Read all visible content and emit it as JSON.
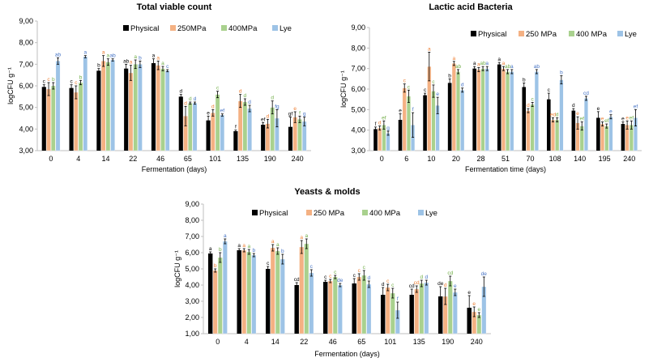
{
  "colors": {
    "Physical": "#000000",
    "250MPa": "#f4b183",
    "400MPa": "#a9d18e",
    "Lye": "#9dc3e6"
  },
  "chart_data": [
    {
      "type": "bar",
      "title": "Total viable count",
      "xlabel": "Fermentation (days)",
      "ylabel": "logCFU g⁻¹",
      "ylim": [
        3,
        9
      ],
      "yticks": [
        "3,00",
        "4,00",
        "5,00",
        "6,00",
        "7,00",
        "8,00",
        "9,00"
      ],
      "legend_position": "top-right",
      "categories": [
        "0",
        "4",
        "14",
        "22",
        "46",
        "65",
        "101",
        "135",
        "190",
        "240"
      ],
      "series": [
        {
          "name": "Physical",
          "key": "Physical",
          "values": [
            5.95,
            5.9,
            6.7,
            6.8,
            7.05,
            5.5,
            4.4,
            3.9,
            4.2,
            4.1
          ],
          "errors": [
            0.1,
            0.15,
            0.1,
            0.2,
            0.2,
            0.1,
            0.2,
            0.05,
            0.1,
            0.45
          ],
          "letters": [
            "c",
            "c",
            "b",
            "ab",
            "a",
            "d",
            "e",
            "f",
            "ef",
            "gf"
          ]
        },
        {
          "name": "250MPa",
          "key": "250MPa",
          "values": [
            5.85,
            5.7,
            7.15,
            6.6,
            6.95,
            4.6,
            4.75,
            5.3,
            4.25,
            4.55
          ],
          "errors": [
            0.3,
            0.3,
            0.25,
            0.35,
            0.2,
            0.45,
            0.15,
            0.3,
            0.2,
            0.25
          ],
          "letters": [
            "c",
            "c",
            "a",
            "a",
            "a",
            "d",
            "d",
            "d",
            "d",
            "e"
          ]
        },
        {
          "name": "400MPa",
          "key": "400MPa",
          "values": [
            6.0,
            6.15,
            7.1,
            7.0,
            6.8,
            5.2,
            5.6,
            5.25,
            5.0,
            4.45
          ],
          "errors": [
            0.15,
            0.1,
            0.15,
            0.2,
            0.1,
            0.05,
            0.15,
            0.15,
            0.3,
            0.15
          ],
          "letters": [
            "b",
            "b",
            "a",
            "a",
            "a",
            "d",
            "c",
            "d",
            "d",
            "f"
          ]
        },
        {
          "name": "Lye",
          "key": "Lye",
          "values": [
            7.15,
            7.35,
            7.2,
            7.0,
            6.7,
            5.2,
            4.65,
            4.95,
            4.5,
            4.35
          ],
          "errors": [
            0.15,
            0.05,
            0.05,
            0.15,
            0.05,
            0.05,
            0.05,
            0.15,
            0.4,
            0.2
          ],
          "letters": [
            "ab",
            "a",
            "ab",
            "b",
            "c",
            "d",
            "ef",
            "d",
            "fg",
            "g"
          ]
        }
      ]
    },
    {
      "type": "bar",
      "title": "Lactic acid Bacteria",
      "xlabel": "Fermentation time (days)",
      "ylabel": "logCFU g⁻¹",
      "ylim": [
        3,
        9
      ],
      "yticks": [
        "3,00",
        "4,00",
        "5,00",
        "6,00",
        "7,00",
        "8,00",
        "9,00"
      ],
      "legend_position": "top-right",
      "categories": [
        "0",
        "6",
        "10",
        "20",
        "28",
        "51",
        "70",
        "108",
        "140",
        "195",
        "240"
      ],
      "series": [
        {
          "name": "Physical",
          "key": "Physical",
          "values": [
            4.05,
            4.5,
            5.7,
            6.3,
            7.0,
            7.2,
            6.1,
            5.5,
            4.95,
            4.6,
            4.3
          ],
          "errors": [
            0.1,
            0.3,
            0.1,
            0.2,
            0.1,
            0.1,
            0.2,
            0.3,
            0.1,
            0.3,
            0.1
          ],
          "letters": [
            "f",
            "e",
            "c",
            "b",
            "a",
            "a",
            "b",
            "c",
            "d",
            "e",
            "e"
          ]
        },
        {
          "name": "250 MPa",
          "key": "250MPa",
          "values": [
            4.1,
            6.05,
            7.1,
            7.25,
            6.95,
            7.0,
            4.95,
            4.5,
            4.35,
            4.3,
            4.25
          ],
          "errors": [
            0.1,
            0.2,
            0.7,
            0.1,
            0.1,
            0.1,
            0.1,
            0.1,
            0.3,
            0.1,
            0.2
          ],
          "letters": [
            "d",
            "c",
            "a",
            "a",
            "a",
            "a",
            "d",
            "ed",
            "e",
            "e",
            "e"
          ]
        },
        {
          "name": "400 MPa",
          "key": "400MPa",
          "values": [
            4.25,
            5.65,
            5.9,
            6.85,
            7.0,
            6.85,
            5.25,
            4.5,
            4.2,
            4.2,
            4.25
          ],
          "errors": [
            0.2,
            0.3,
            0.3,
            0.1,
            0.1,
            0.1,
            0.1,
            0.1,
            0.2,
            0.1,
            0.2
          ],
          "letters": [
            "ef",
            "c",
            "c",
            "ab",
            "ab",
            "ab",
            "c",
            "d",
            "ef",
            "ef",
            "ef"
          ]
        },
        {
          "name": "Lye",
          "key": "Lye",
          "values": [
            3.85,
            4.25,
            5.2,
            5.95,
            7.0,
            6.85,
            6.85,
            6.45,
            5.55,
            4.65,
            4.6
          ],
          "errors": [
            0.1,
            0.6,
            0.4,
            0.1,
            0.1,
            0.1,
            0.1,
            0.2,
            0.1,
            0.1,
            0.4
          ],
          "letters": [
            "g",
            "f",
            "e",
            "d",
            "a",
            "a",
            "ab",
            "b",
            "cd",
            "e",
            "ef"
          ]
        }
      ]
    },
    {
      "type": "bar",
      "title": "Yeasts & molds",
      "xlabel": "Fermentation (days)",
      "ylabel": "logCFU g⁻¹",
      "ylim": [
        1,
        9
      ],
      "yticks": [
        "1,00",
        "2,00",
        "3,00",
        "4,00",
        "5,00",
        "6,00",
        "7,00",
        "8,00",
        "9,00"
      ],
      "legend_position": "top-right",
      "categories": [
        "0",
        "4",
        "14",
        "22",
        "46",
        "65",
        "101",
        "135",
        "190",
        "240"
      ],
      "series": [
        {
          "name": "Physical",
          "key": "Physical",
          "values": [
            5.95,
            6.15,
            5.0,
            4.0,
            4.2,
            4.1,
            3.4,
            3.4,
            3.3,
            2.6
          ],
          "errors": [
            0.1,
            0.1,
            0.15,
            0.15,
            0.1,
            0.3,
            0.45,
            0.35,
            0.6,
            0.75
          ],
          "letters": [
            "a",
            "a",
            "c",
            "cd",
            "c",
            "c",
            "d",
            "cd",
            "de",
            "e"
          ]
        },
        {
          "name": "250 MPa",
          "key": "250MPa",
          "values": [
            4.9,
            6.15,
            6.3,
            6.35,
            4.25,
            4.5,
            3.85,
            3.75,
            3.3,
            2.35
          ],
          "errors": [
            0.1,
            0.1,
            0.2,
            0.4,
            0.1,
            0.2,
            0.2,
            0.2,
            0.5,
            0.3
          ],
          "letters": [
            "b",
            "a",
            "a",
            "a",
            "c",
            "c",
            "c",
            "cd",
            "d",
            "e"
          ]
        },
        {
          "name": "400 MPa",
          "key": "400MPa",
          "values": [
            5.7,
            6.05,
            6.1,
            6.55,
            4.5,
            4.6,
            3.5,
            4.1,
            4.25,
            2.15
          ],
          "errors": [
            0.3,
            0.15,
            0.2,
            0.3,
            0.1,
            0.3,
            0.3,
            0.2,
            0.3,
            0.15
          ],
          "letters": [
            "b",
            "a",
            "a",
            "a",
            "c",
            "c",
            "c",
            "d",
            "cd",
            "e"
          ]
        },
        {
          "name": "Lye",
          "key": "Lye",
          "values": [
            6.7,
            5.85,
            5.6,
            4.75,
            4.0,
            4.05,
            2.45,
            4.15,
            3.55,
            3.9
          ],
          "errors": [
            0.15,
            0.1,
            0.3,
            0.2,
            0.1,
            0.2,
            0.5,
            0.15,
            0.2,
            0.6
          ],
          "letters": [
            "a",
            "b",
            "b",
            "c",
            "de",
            "d",
            "f",
            "d",
            "e",
            "de"
          ]
        }
      ]
    }
  ]
}
